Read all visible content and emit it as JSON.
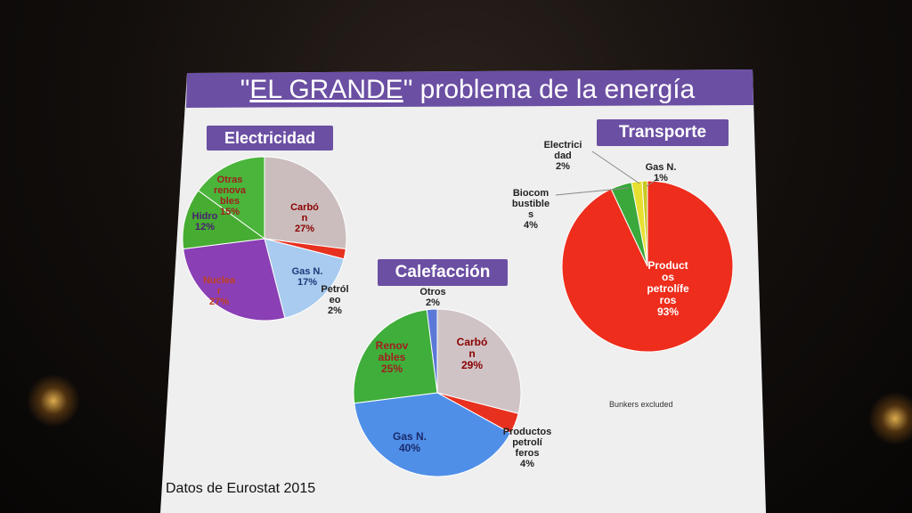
{
  "slide": {
    "title_prefix": "\"",
    "title_emph": "EL GRANDE",
    "title_suffix": "\" problema de la energía",
    "source": "Datos de Eurostat 2015",
    "note": "Bunkers excluded",
    "header_color": "#6b4fa3"
  },
  "chart_data": [
    {
      "type": "pie",
      "title": "Electricidad",
      "slices": [
        {
          "label": "Carbó\nn\n27%",
          "value": 27,
          "color": "#cbbdbd",
          "label_color": "#8b0000"
        },
        {
          "label": "Petról\neo\n2%",
          "value": 2,
          "color": "#e8301f",
          "label_color": "#222222"
        },
        {
          "label": "Gas N.\n17%",
          "value": 17,
          "color": "#a8cbef",
          "label_color": "#1a3a7a"
        },
        {
          "label": "Nuclea\nr\n27%",
          "value": 27,
          "color": "#8a3fb5",
          "label_color": "#c04020"
        },
        {
          "label": "Hidro\n12%",
          "value": 12,
          "color": "#46ac32",
          "label_color": "#4a2070"
        },
        {
          "label": "Otras\nrenova\nbles\n15%",
          "value": 15,
          "color": "#4ab53a",
          "label_color": "#a02020"
        }
      ]
    },
    {
      "type": "pie",
      "title": "Calefacción",
      "slices": [
        {
          "label": "Carbó\nn\n29%",
          "value": 29,
          "color": "#cfc3c6",
          "label_color": "#8b0000"
        },
        {
          "label": "Productos\npetrolí\nferos\n4%",
          "value": 4,
          "color": "#e8301f",
          "label_color": "#222222"
        },
        {
          "label": "Gas N.\n40%",
          "value": 40,
          "color": "#4f8fe8",
          "label_color": "#1a2a6a"
        },
        {
          "label": "Renov\nables\n25%",
          "value": 25,
          "color": "#3fae3a",
          "label_color": "#a02020"
        },
        {
          "label": "Otros\n2%",
          "value": 2,
          "color": "#5a78d8",
          "label_color": "#222222"
        }
      ]
    },
    {
      "type": "pie",
      "title": "Transporte",
      "slices": [
        {
          "label": "Product\nos\npetrolífe\nros\n93%",
          "value": 93,
          "color": "#ee2d1c",
          "label_color": "#ffffff"
        },
        {
          "label": "Biocom\nbustible\ns\n4%",
          "value": 4,
          "color": "#3aa83a",
          "label_color": "#222222"
        },
        {
          "label": "Electrici\ndad\n2%",
          "value": 2,
          "color": "#e8e030",
          "label_color": "#222222"
        },
        {
          "label": "Gas N.\n1%",
          "value": 1,
          "color": "#c8c820",
          "label_color": "#222222"
        }
      ]
    }
  ]
}
